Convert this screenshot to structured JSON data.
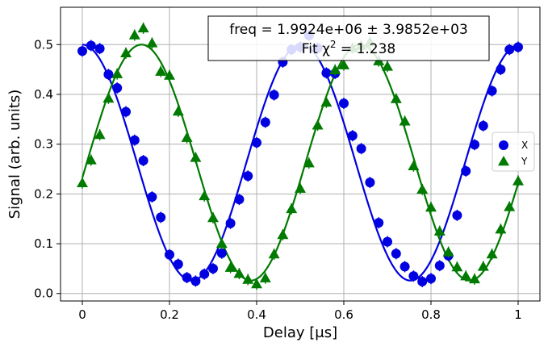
{
  "chart_data": {
    "type": "scatter",
    "xlabel": "Delay [μs]",
    "ylabel": "Signal (arb. units)",
    "xlim": [
      -0.05,
      1.05
    ],
    "ylim": [
      -0.015,
      0.575
    ],
    "xticks": [
      0,
      0.2,
      0.4,
      0.6,
      0.8,
      1
    ],
    "xtick_labels": [
      "0",
      "0.2",
      "0.4",
      "0.6",
      "0.8",
      "1"
    ],
    "yticks": [
      0.0,
      0.1,
      0.2,
      0.3,
      0.4,
      0.5
    ],
    "ytick_labels": [
      "0.0",
      "0.1",
      "0.2",
      "0.3",
      "0.4",
      "0.5"
    ],
    "grid": true,
    "legend_placement": "center-right",
    "annotation": {
      "line1": "freq =  1.9924e+06 ±  3.9852e+03",
      "line2_prefix": "Fit χ",
      "line2_sup": "2",
      "line2_suffix": " = 1.238"
    },
    "series": [
      {
        "name": "X",
        "color": "#0000e0",
        "marker": "circle",
        "x": [
          0.0,
          0.02,
          0.04,
          0.06,
          0.08,
          0.1,
          0.12,
          0.14,
          0.16,
          0.18,
          0.2,
          0.22,
          0.24,
          0.26,
          0.28,
          0.3,
          0.32,
          0.34,
          0.36,
          0.38,
          0.4,
          0.42,
          0.44,
          0.46,
          0.48,
          0.5,
          0.52,
          0.54,
          0.56,
          0.58,
          0.6,
          0.62,
          0.64,
          0.66,
          0.68,
          0.7,
          0.72,
          0.74,
          0.76,
          0.78,
          0.8,
          0.82,
          0.84,
          0.86,
          0.88,
          0.9,
          0.92,
          0.94,
          0.96,
          0.98,
          1.0
        ],
        "y": [
          0.487,
          0.498,
          0.492,
          0.44,
          0.413,
          0.365,
          0.308,
          0.267,
          0.194,
          0.153,
          0.078,
          0.059,
          0.032,
          0.025,
          0.039,
          0.05,
          0.081,
          0.141,
          0.189,
          0.236,
          0.303,
          0.344,
          0.399,
          0.465,
          0.49,
          0.495,
          0.518,
          0.493,
          0.443,
          0.442,
          0.382,
          0.317,
          0.291,
          0.223,
          0.142,
          0.104,
          0.08,
          0.054,
          0.035,
          0.024,
          0.03,
          0.056,
          0.076,
          0.157,
          0.246,
          0.299,
          0.337,
          0.407,
          0.45,
          0.49,
          0.495
        ]
      },
      {
        "name": "Y",
        "color": "#007a00",
        "marker": "triangle",
        "x": [
          0.0,
          0.02,
          0.04,
          0.06,
          0.08,
          0.1,
          0.12,
          0.14,
          0.16,
          0.18,
          0.2,
          0.22,
          0.24,
          0.26,
          0.28,
          0.3,
          0.32,
          0.34,
          0.36,
          0.38,
          0.4,
          0.42,
          0.44,
          0.46,
          0.48,
          0.5,
          0.52,
          0.54,
          0.56,
          0.58,
          0.6,
          0.62,
          0.64,
          0.66,
          0.68,
          0.7,
          0.72,
          0.74,
          0.76,
          0.78,
          0.8,
          0.82,
          0.84,
          0.86,
          0.88,
          0.9,
          0.92,
          0.94,
          0.96,
          0.98,
          1.0
        ],
        "y": [
          0.222,
          0.268,
          0.319,
          0.392,
          0.441,
          0.483,
          0.519,
          0.533,
          0.503,
          0.446,
          0.438,
          0.366,
          0.313,
          0.273,
          0.196,
          0.152,
          0.1,
          0.052,
          0.04,
          0.028,
          0.019,
          0.031,
          0.079,
          0.118,
          0.17,
          0.211,
          0.262,
          0.338,
          0.384,
          0.449,
          0.459,
          0.493,
          0.498,
          0.505,
          0.467,
          0.456,
          0.391,
          0.346,
          0.256,
          0.209,
          0.173,
          0.125,
          0.083,
          0.053,
          0.035,
          0.029,
          0.054,
          0.079,
          0.129,
          0.174,
          0.226
        ]
      }
    ],
    "fits": [
      {
        "series": "X",
        "amplitude": 0.237,
        "offset": 0.263,
        "freq_mhz": 1.9924,
        "phase": 0.0
      },
      {
        "series": "Y",
        "amplitude": 0.237,
        "offset": 0.263,
        "freq_mhz": 1.9924,
        "phase": -1.7
      }
    ]
  }
}
